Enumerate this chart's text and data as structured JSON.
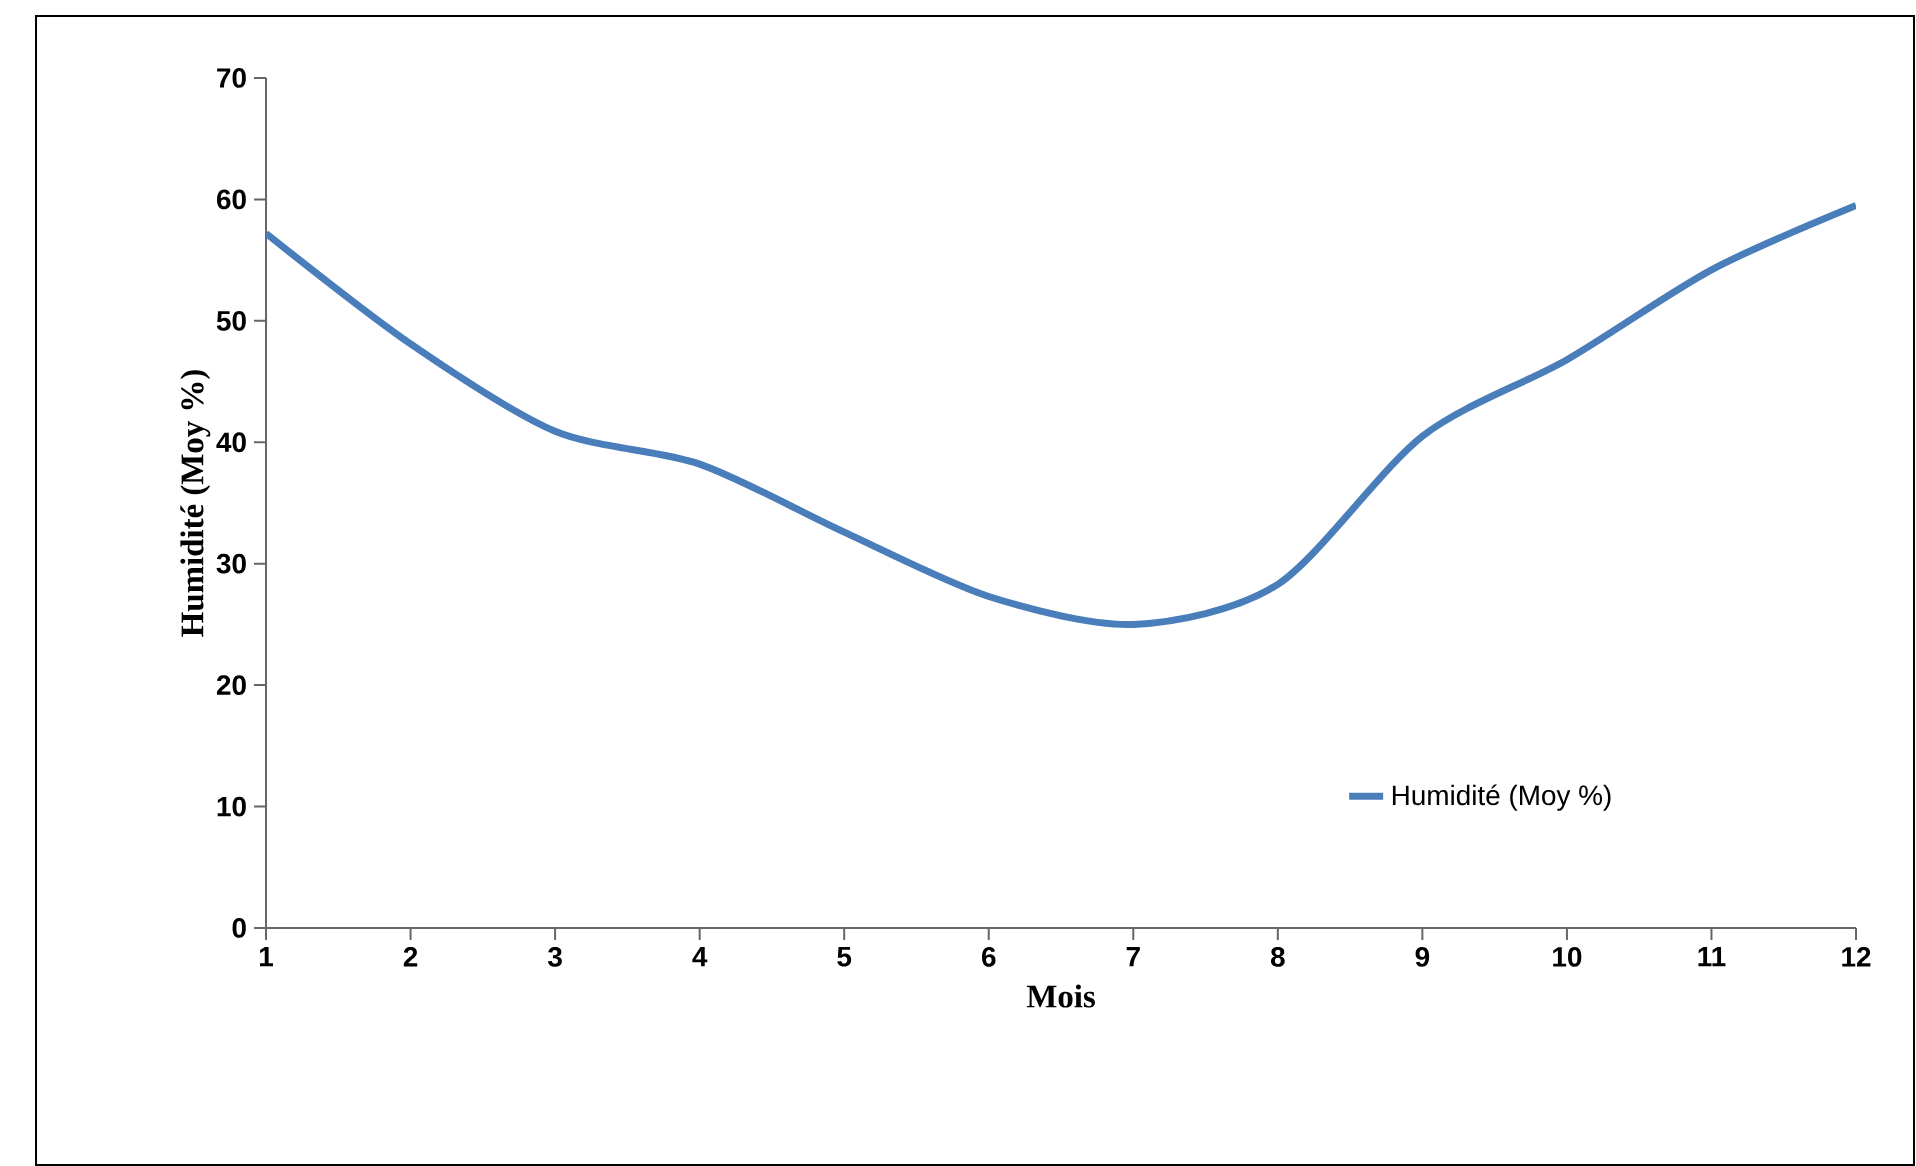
{
  "chart_data": {
    "type": "line",
    "xlabel": "Mois",
    "ylabel": "Humidité (Moy %)",
    "x": [
      1,
      2,
      3,
      4,
      5,
      6,
      7,
      8,
      9,
      10,
      11,
      12
    ],
    "series": [
      {
        "name": "Humidité (Moy %)",
        "color": "#4a7ebb",
        "values": [
          57.2,
          48.1,
          40.9,
          38.2,
          32.6,
          27.3,
          25.0,
          28.3,
          40.5,
          46.8,
          54.2,
          59.5
        ]
      }
    ],
    "xlim": [
      1,
      12
    ],
    "xticks": [
      1,
      2,
      3,
      4,
      5,
      6,
      7,
      8,
      9,
      10,
      11,
      12
    ],
    "ylim": [
      0,
      70
    ],
    "yticks": [
      0,
      10,
      20,
      30,
      40,
      50,
      60,
      70
    ],
    "legend": "right",
    "grid": false,
    "marker": "none",
    "line_style": "solid"
  }
}
